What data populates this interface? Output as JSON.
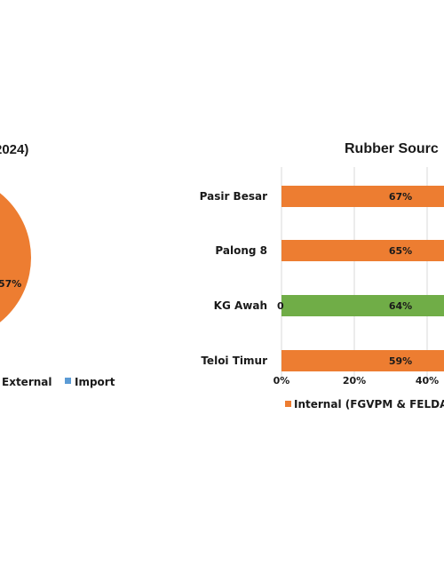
{
  "colors": {
    "internal": "#ED7D31",
    "external": "#70AD47",
    "import": "#5B9BD5",
    "grid": "#D9D9D9",
    "text": "#1a1a1a"
  },
  "chart_data": [
    {
      "type": "pie",
      "title": "2024)",
      "slices": [
        {
          "label": "External",
          "value": 57,
          "display": "57%"
        },
        {
          "label": "Import",
          "value": null,
          "display": ""
        }
      ],
      "legend": [
        "External",
        "Import"
      ],
      "legend_position": "bottom"
    },
    {
      "type": "bar",
      "orientation": "horizontal",
      "title": "Rubber Sourc",
      "categories": [
        "Pasir Besar",
        "Palong 8",
        "KG Awah",
        "Teloi Timur"
      ],
      "series": [
        {
          "name": "Internal (FGVPM & FELDA)",
          "values": [
            67,
            65,
            64,
            59
          ],
          "labels": [
            "67%",
            "65%",
            "64%",
            "59%"
          ]
        }
      ],
      "highlight_category": "KG Awah",
      "extra_label": "0",
      "x_ticks": [
        "0%",
        "20%",
        "40%"
      ],
      "xlim": [
        0,
        100
      ],
      "grid": true,
      "legend_position": "bottom"
    }
  ]
}
